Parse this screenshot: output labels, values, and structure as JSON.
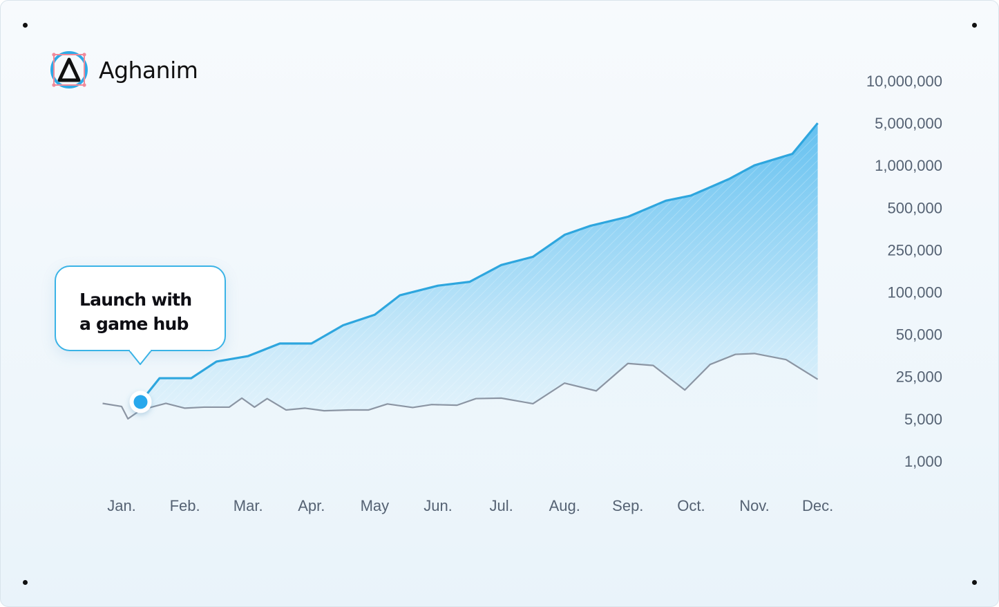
{
  "brand": {
    "name": "Aghanim",
    "icon": "aghanim-logo-icon"
  },
  "callout": {
    "line1": "Launch with",
    "line2": "a game hub"
  },
  "colors": {
    "accent": "#2ea6de",
    "area_fill": "#7ecbf2",
    "baseline": "#8b95a3",
    "marker": "#28a8ec"
  },
  "chart_data": {
    "type": "area",
    "title": "",
    "xlabel": "",
    "ylabel": "",
    "y_scale": "log",
    "ylim": [
      1000,
      10000000
    ],
    "ytick_labels": [
      "10,000,000",
      "5,000,000",
      "1,000,000",
      "500,000",
      "250,000",
      "100,000",
      "50,000",
      "25,000",
      "5,000",
      "1,000"
    ],
    "categories": [
      "Jan.",
      "Feb.",
      "Mar.",
      "Apr.",
      "May",
      "Jun.",
      "Jul.",
      "Aug.",
      "Sep.",
      "Oct.",
      "Nov.",
      "Dec."
    ],
    "grid": false,
    "legend": "none",
    "annotation": {
      "text": "Launch with a game hub",
      "x": 0.3,
      "y": 9500
    },
    "series": [
      {
        "role": "with-game-hub",
        "x": [
          0.3,
          0.6,
          1.1,
          1.5,
          2.0,
          2.5,
          3.0,
          3.5,
          4.0,
          4.4,
          5.0,
          5.5,
          6.0,
          6.5,
          7.0,
          7.4,
          8.0,
          8.6,
          9.0,
          9.6,
          10.0,
          10.6,
          11.0
        ],
        "values": [
          9500,
          23500,
          23500,
          32000,
          35000,
          43000,
          43000,
          58000,
          69000,
          95000,
          115000,
          125000,
          180000,
          215000,
          320000,
          370000,
          430000,
          560000,
          610000,
          800000,
          1000000,
          1550000,
          5000000
        ]
      },
      {
        "role": "without-game-hub",
        "x": [
          -0.3,
          0.0,
          0.1,
          0.3,
          0.7,
          1.0,
          1.3,
          1.7,
          1.9,
          2.1,
          2.3,
          2.6,
          2.9,
          3.2,
          3.6,
          3.9,
          4.2,
          4.6,
          4.9,
          5.3,
          5.6,
          6.0,
          6.5,
          7.0,
          7.5,
          8.0,
          8.4,
          8.9,
          9.3,
          9.7,
          10.0,
          10.5,
          11.0
        ],
        "values": [
          9000,
          8000,
          5000,
          7000,
          9000,
          7500,
          7800,
          7800,
          11000,
          7800,
          10800,
          7000,
          7500,
          6800,
          7000,
          7000,
          8800,
          7700,
          8600,
          8400,
          10800,
          11000,
          8900,
          19500,
          14500,
          31000,
          30000,
          15000,
          30500,
          36000,
          36500,
          33000,
          22500
        ]
      }
    ]
  }
}
